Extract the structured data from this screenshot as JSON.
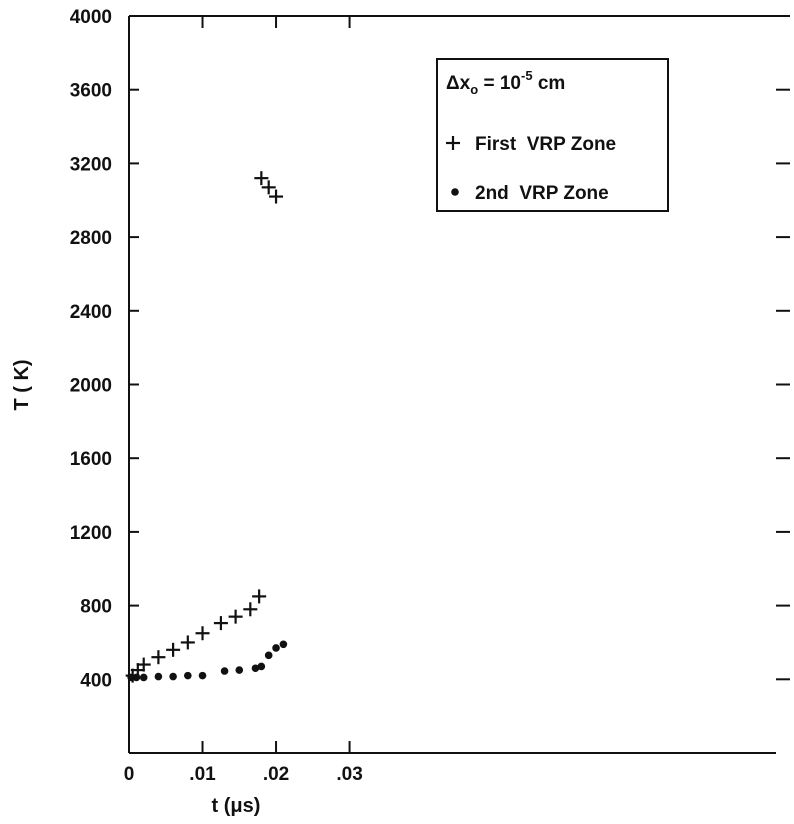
{
  "chart_data": {
    "type": "scatter",
    "title": "",
    "xlabel": "t (μs)",
    "ylabel": "T ( K)",
    "xlim": [
      0,
      0.088
    ],
    "ylim": [
      0,
      4000
    ],
    "x_ticks": [
      0,
      0.01,
      0.02,
      0.03
    ],
    "x_tick_labels": [
      "0",
      ".01",
      ".02",
      ".03"
    ],
    "y_ticks": [
      400,
      800,
      1200,
      1600,
      2000,
      2400,
      2800,
      3200,
      3600,
      4000
    ],
    "y_tick_labels": [
      "400",
      "800",
      "1200",
      "1600",
      "2000",
      "2400",
      "2800",
      "3200",
      "3600",
      "4000"
    ],
    "grid": false,
    "legend": {
      "placement": "top-right",
      "header": {
        "prefix": "Δx",
        "subscript": "o",
        "middle": " = 10",
        "exponent": "-5",
        "suffix": " cm"
      }
    },
    "series": [
      {
        "name": "First  VRP Zone",
        "marker": "plus",
        "points": [
          [
            0.0005,
            420
          ],
          [
            0.0012,
            450
          ],
          [
            0.002,
            480
          ],
          [
            0.004,
            520
          ],
          [
            0.006,
            560
          ],
          [
            0.008,
            600
          ],
          [
            0.01,
            650
          ],
          [
            0.0125,
            705
          ],
          [
            0.0145,
            740
          ],
          [
            0.0165,
            780
          ],
          [
            0.0177,
            850
          ],
          [
            0.018,
            3120
          ],
          [
            0.019,
            3070
          ],
          [
            0.02,
            3020
          ]
        ]
      },
      {
        "name": "2nd  VRP Zone",
        "marker": "dot",
        "points": [
          [
            0.0003,
            410
          ],
          [
            0.001,
            410
          ],
          [
            0.002,
            410
          ],
          [
            0.004,
            415
          ],
          [
            0.006,
            415
          ],
          [
            0.008,
            420
          ],
          [
            0.01,
            420
          ],
          [
            0.013,
            445
          ],
          [
            0.015,
            450
          ],
          [
            0.0172,
            460
          ],
          [
            0.018,
            470
          ],
          [
            0.019,
            530
          ],
          [
            0.02,
            570
          ],
          [
            0.021,
            590
          ]
        ]
      }
    ]
  }
}
